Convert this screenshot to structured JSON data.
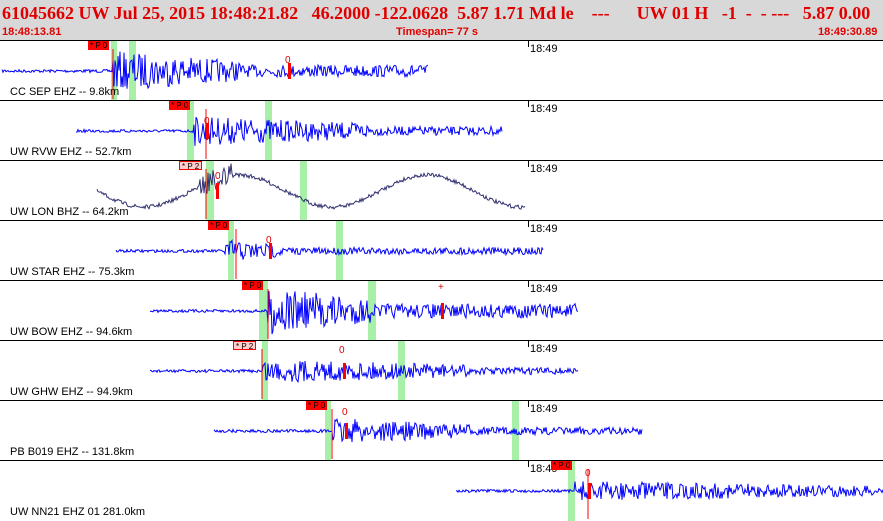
{
  "header": {
    "event_line": "61045662 UW Jul 25, 2015 18:48:21.82   46.2000 -122.0628  5.87 1.71 Md le    ---      UW 01 H   -1  -  - ---   5.87 0.00",
    "start_time": "18:48:13.81",
    "timespan": "Timespan=  77 s",
    "end_time": "18:49:30.89"
  },
  "colors": {
    "header_bg": "#d8d8d8",
    "header_text": "#e00000",
    "trace": "#0000ff",
    "trace_lon": "#303070",
    "green_marker": "#a8f0a8",
    "pick_red": "#ff0000",
    "pick_pink": "#ffcccc"
  },
  "panels": [
    {
      "label": "CC SEP EHZ -- 9.8km",
      "time_label": "18:49",
      "pick_label": "* P 0",
      "pick_style": "red",
      "amp_label": "0",
      "trace_color": "trace"
    },
    {
      "label": "UW RVW EHZ -- 52.7km",
      "time_label": "18:49",
      "pick_label": "* P 0",
      "pick_style": "red",
      "amp_label": "0",
      "trace_color": "trace"
    },
    {
      "label": "UW LON BHZ -- 64.2km",
      "time_label": "18:49",
      "pick_label": "* P 2",
      "pick_style": "pink",
      "amp_label": "0",
      "trace_color": "trace_lon"
    },
    {
      "label": "UW STAR EHZ -- 75.3km",
      "time_label": "18:49",
      "pick_label": "* P 0",
      "pick_style": "red",
      "amp_label": "0",
      "trace_color": "trace"
    },
    {
      "label": "UW BOW EHZ -- 94.6km",
      "time_label": "18:49",
      "pick_label": "* P 0",
      "pick_style": "red",
      "amp_label": "+",
      "trace_color": "trace"
    },
    {
      "label": "UW GHW EHZ -- 94.9km",
      "time_label": "18:49",
      "pick_label": "* P 2",
      "pick_style": "pink",
      "amp_label": "0",
      "trace_color": "trace"
    },
    {
      "label": "PB B019 EHZ -- 131.8km",
      "time_label": "18:49",
      "pick_label": "* P 0",
      "pick_style": "red",
      "amp_label": "0",
      "trace_color": "trace"
    },
    {
      "label": "UW NN21 EHZ 01 281.0km",
      "time_label": "18:49",
      "pick_label": "* P 0",
      "pick_style": "red",
      "amp_label": "0",
      "trace_color": "trace"
    }
  ]
}
